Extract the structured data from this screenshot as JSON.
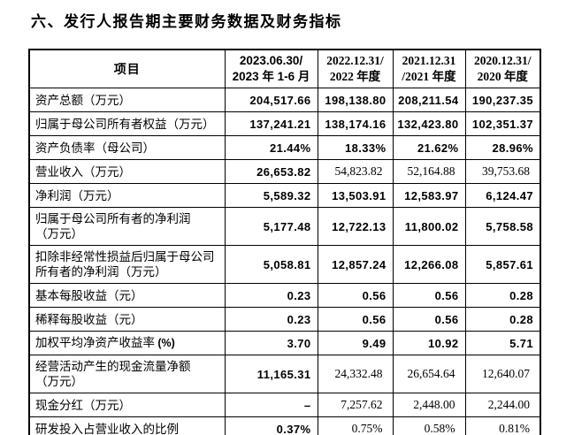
{
  "page": {
    "title": "六、发行人报告期主要财务数据及财务指标"
  },
  "colors": {
    "text": "#000000",
    "border": "#000000",
    "page_background": "#ffffff"
  },
  "table": {
    "item_header": "项目",
    "period_headers": [
      {
        "lines": [
          "2023.06.30/",
          "2023 年 1-6 月"
        ],
        "font": "sans"
      },
      {
        "lines": [
          "2022.12.31/",
          "2022 年度"
        ],
        "font": "serif"
      },
      {
        "lines": [
          "2021.12.31",
          "/2021 年度"
        ],
        "font": "serif"
      },
      {
        "lines": [
          "2020.12.31/",
          "2020 年度"
        ],
        "font": "serif"
      }
    ],
    "rows": [
      {
        "label_lines": [
          "资产总额（万元）"
        ],
        "label_suffix": "",
        "values": [
          "204,517.66",
          "198,138.80",
          "208,211.54",
          "190,237.35"
        ],
        "value_styles": [
          "bold",
          "bold",
          "bold",
          "bold"
        ]
      },
      {
        "label_lines": [
          "归属于母公司所有者权益（万元）"
        ],
        "label_suffix": "",
        "values": [
          "137,241.21",
          "138,174.16",
          "132,423.80",
          "102,351.37"
        ],
        "value_styles": [
          "bold",
          "bold",
          "bold",
          "bold"
        ]
      },
      {
        "label_lines": [
          "资产负债率（母公司）"
        ],
        "label_suffix": "",
        "values": [
          "21.44%",
          "18.33%",
          "21.62%",
          "28.96%"
        ],
        "value_styles": [
          "bold",
          "bold",
          "bold",
          "bold"
        ]
      },
      {
        "label_lines": [
          "营业收入（万元）"
        ],
        "label_suffix": "",
        "values": [
          "26,653.82",
          "54,823.82",
          "52,164.88",
          "39,753.68"
        ],
        "value_styles": [
          "bold",
          "serif",
          "serif",
          "serif"
        ]
      },
      {
        "label_lines": [
          "净利润（万元）"
        ],
        "label_suffix": "",
        "values": [
          "5,589.32",
          "13,503.91",
          "12,583.97",
          "6,124.47"
        ],
        "value_styles": [
          "bold",
          "bold",
          "bold",
          "bold"
        ]
      },
      {
        "label_lines": [
          "归属于母公司所有者的净利润",
          "（万元）"
        ],
        "label_suffix": "",
        "values": [
          "5,177.48",
          "12,722.13",
          "11,800.02",
          "5,758.58"
        ],
        "value_styles": [
          "bold",
          "bold",
          "bold",
          "bold"
        ]
      },
      {
        "label_lines": [
          "扣除非经常性损益后归属于母公司",
          "所有者的净利润（万元）"
        ],
        "label_suffix": "",
        "values": [
          "5,058.81",
          "12,857.24",
          "12,266.08",
          "5,857.61"
        ],
        "value_styles": [
          "bold",
          "bold",
          "bold",
          "bold"
        ]
      },
      {
        "label_lines": [
          "基本每股收益（元）"
        ],
        "label_suffix": "",
        "values": [
          "0.23",
          "0.56",
          "0.56",
          "0.28"
        ],
        "value_styles": [
          "bold",
          "bold",
          "bold",
          "bold"
        ]
      },
      {
        "label_lines": [
          "稀释每股收益（元）"
        ],
        "label_suffix": "",
        "values": [
          "0.23",
          "0.56",
          "0.56",
          "0.28"
        ],
        "value_styles": [
          "bold",
          "bold",
          "bold",
          "bold"
        ]
      },
      {
        "label_lines": [
          "加权平均净资产收益率"
        ],
        "label_suffix": "(%)",
        "values": [
          "3.70",
          "9.49",
          "10.92",
          "5.71"
        ],
        "value_styles": [
          "bold",
          "bold",
          "bold",
          "bold"
        ]
      },
      {
        "label_lines": [
          "经营活动产生的现金流量净额",
          "（万元）"
        ],
        "label_suffix": "",
        "values": [
          "11,165.31",
          "24,332.48",
          "26,654.64",
          "12,640.07"
        ],
        "value_styles": [
          "bold",
          "serif",
          "serif",
          "serif"
        ]
      },
      {
        "label_lines": [
          "现金分红（万元）"
        ],
        "label_suffix": "",
        "values": [
          "–",
          "7,257.62",
          "2,448.00",
          "2,244.00"
        ],
        "value_styles": [
          "bold",
          "serif",
          "serif",
          "serif"
        ]
      },
      {
        "label_lines": [
          "研发投入占营业收入的比例"
        ],
        "label_suffix": "",
        "values": [
          "0.37%",
          "0.75%",
          "0.58%",
          "0.81%"
        ],
        "value_styles": [
          "bold",
          "serif",
          "serif",
          "serif"
        ]
      }
    ]
  }
}
